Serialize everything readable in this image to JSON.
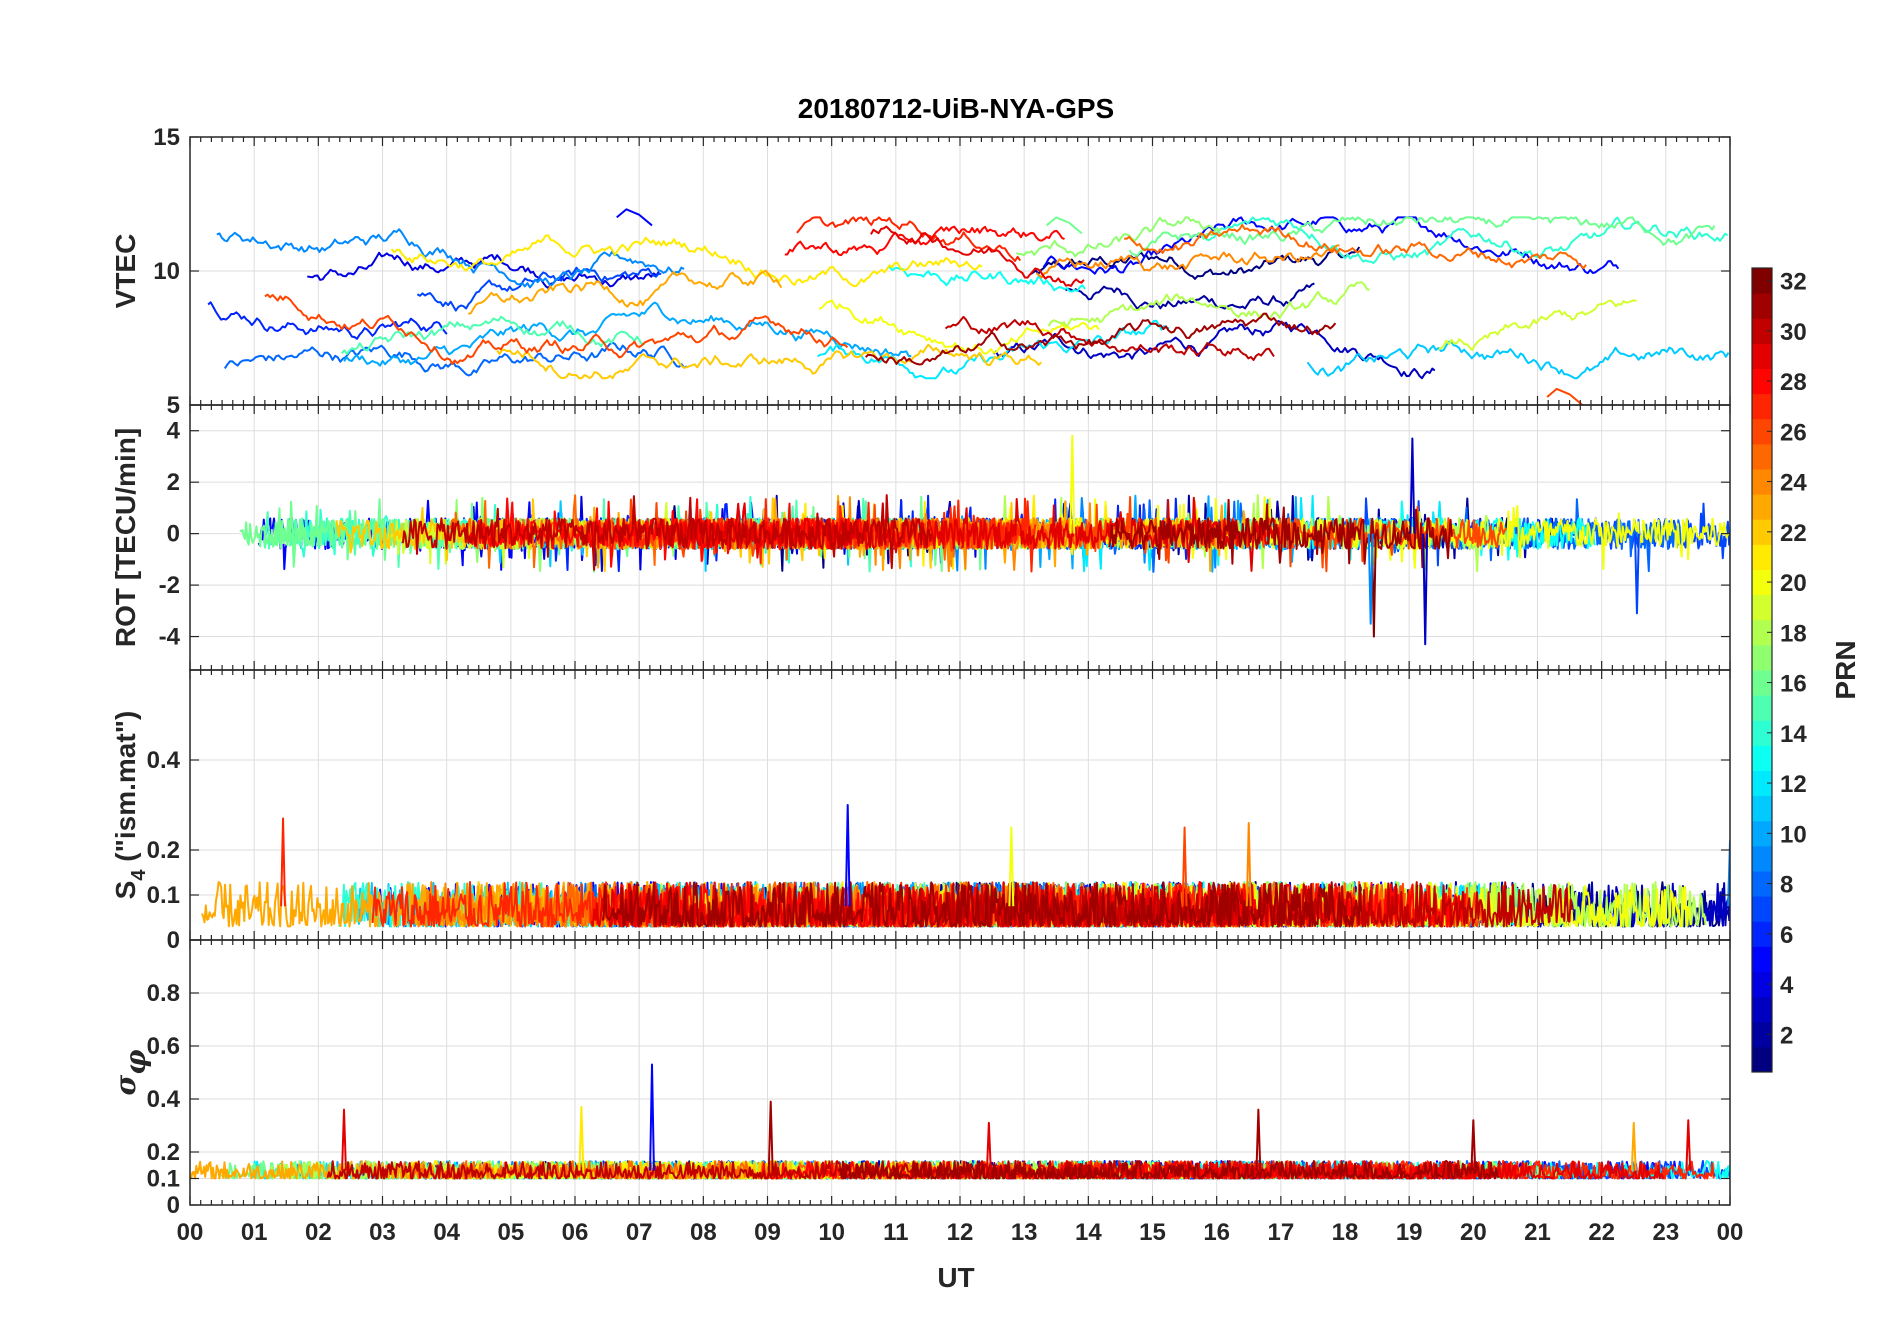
{
  "chart_data": {
    "type": "line",
    "title": "20180712-UiB-NYA-GPS",
    "xlabel": "UT",
    "x_ticks": [
      "00",
      "01",
      "02",
      "03",
      "04",
      "05",
      "06",
      "07",
      "08",
      "09",
      "10",
      "11",
      "12",
      "13",
      "14",
      "15",
      "16",
      "17",
      "18",
      "19",
      "20",
      "21",
      "22",
      "23",
      "00"
    ],
    "xlim": [
      0,
      24
    ],
    "grid": true,
    "colorbar": {
      "label": "PRN",
      "range": [
        1,
        32
      ],
      "ticks": [
        "2",
        "4",
        "6",
        "8",
        "10",
        "12",
        "14",
        "16",
        "18",
        "20",
        "22",
        "24",
        "26",
        "28",
        "30",
        "32"
      ],
      "colormap": "jet",
      "placement": "right"
    },
    "panels": [
      {
        "id": "vtec",
        "ylabel": "VTEC",
        "ylim": [
          5,
          15
        ],
        "y_ticks": [
          "5",
          "10",
          "15"
        ],
        "series_count": 31,
        "typical_range": [
          6,
          12
        ],
        "events": [
          {
            "prn": 5,
            "x": 6.9,
            "y": 12.3
          },
          {
            "prn": 16,
            "x": 13.6,
            "y": 12.0
          },
          {
            "prn": 26,
            "x": 21.4,
            "y": 5.6
          }
        ]
      },
      {
        "id": "rot",
        "ylabel": "ROT [TECU/min]",
        "ylim": [
          -5.3,
          5
        ],
        "y_ticks": [
          "-4",
          "-2",
          "0",
          "2",
          "4"
        ],
        "series_count": 31,
        "typical_range": [
          -0.5,
          0.5
        ],
        "spikes": [
          {
            "prn": 20,
            "x": 13.75,
            "y": 3.8
          },
          {
            "prn": 32,
            "x": 18.45,
            "y": -4.0
          },
          {
            "prn": 3,
            "x": 19.05,
            "y": 3.7
          },
          {
            "prn": 3,
            "x": 19.25,
            "y": -4.3
          },
          {
            "prn": 7,
            "x": 22.55,
            "y": -3.1
          },
          {
            "prn": 9,
            "x": 18.4,
            "y": -3.5
          }
        ]
      },
      {
        "id": "s4",
        "ylabel": "S4 (\"ism.mat\")",
        "ylabel_parts": {
          "main": "S",
          "subscript": "4",
          "rest": " (\"ism.mat\")"
        },
        "ylim": [
          0,
          0.6
        ],
        "y_ticks": [
          "0",
          "0.1",
          "0.2",
          "0.4"
        ],
        "series_count": 31,
        "typical_range": [
          0.03,
          0.12
        ],
        "spikes": [
          {
            "prn": 27,
            "x": 1.45,
            "y": 0.27
          },
          {
            "prn": 5,
            "x": 10.25,
            "y": 0.3
          },
          {
            "prn": 26,
            "x": 15.5,
            "y": 0.25
          },
          {
            "prn": 24,
            "x": 16.5,
            "y": 0.26
          },
          {
            "prn": 20,
            "x": 12.8,
            "y": 0.25
          },
          {
            "prn": 9,
            "x": 24.0,
            "y": 0.22
          }
        ]
      },
      {
        "id": "sigma_phi",
        "ylabel": "σφ",
        "ylabel_parts": {
          "main": "σ",
          "subscript": "φ"
        },
        "ylim": [
          0,
          1
        ],
        "y_ticks": [
          "0",
          "0.1",
          "0.2",
          "0.4",
          "0.6",
          "0.8"
        ],
        "series_count": 31,
        "typical_range": [
          0.1,
          0.16
        ],
        "spikes": [
          {
            "prn": 29,
            "x": 2.4,
            "y": 0.36
          },
          {
            "prn": 21,
            "x": 6.1,
            "y": 0.37
          },
          {
            "prn": 5,
            "x": 7.2,
            "y": 0.53
          },
          {
            "prn": 31,
            "x": 9.05,
            "y": 0.39
          },
          {
            "prn": 29,
            "x": 12.45,
            "y": 0.31
          },
          {
            "prn": 31,
            "x": 16.65,
            "y": 0.36
          },
          {
            "prn": 31,
            "x": 20.0,
            "y": 0.32
          },
          {
            "prn": 23,
            "x": 22.5,
            "y": 0.31
          },
          {
            "prn": 29,
            "x": 23.35,
            "y": 0.32
          }
        ]
      }
    ]
  }
}
